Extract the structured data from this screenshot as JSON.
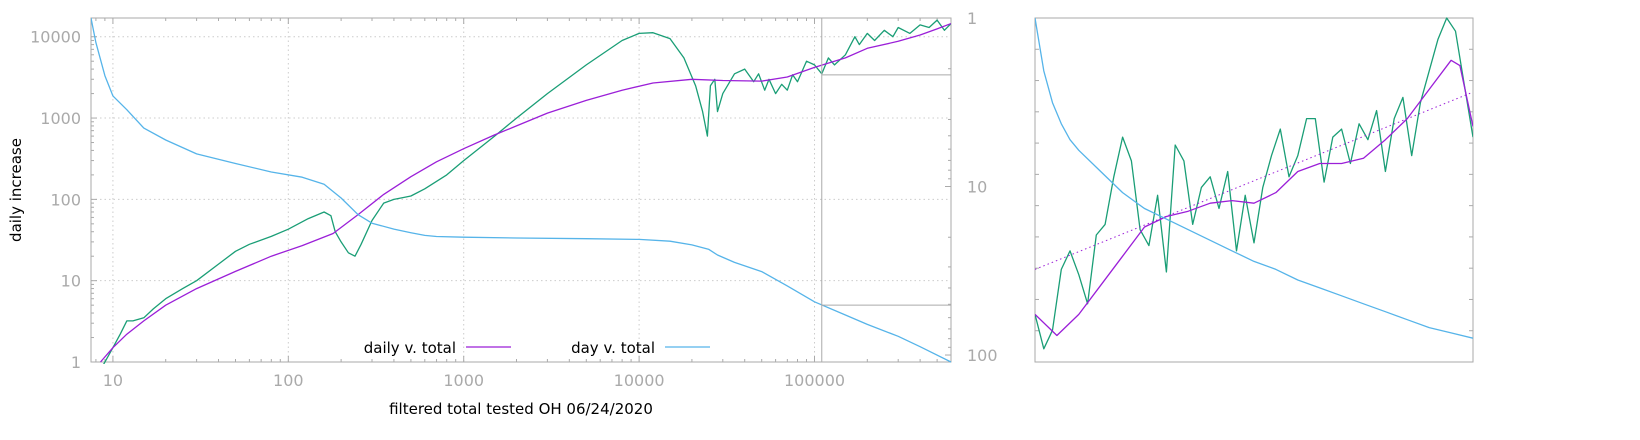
{
  "chart_data": [
    {
      "type": "line",
      "xlabel": "filtered total tested OH 06/24/2020",
      "ylabel": "daily increase",
      "x_scale": "log",
      "y_scale": "log",
      "y2_scale": "log-reversed",
      "xlim": [
        7.5,
        600000
      ],
      "ylim": [
        1,
        17000
      ],
      "y2lim": [
        1,
        110
      ],
      "x_ticks": [
        "10",
        "100",
        "1000",
        "10000",
        "100000"
      ],
      "y_ticks": [
        "1",
        "10",
        "100",
        "1000",
        "10000"
      ],
      "y2_ticks": [
        "1",
        "10",
        "100"
      ],
      "grid": true,
      "legend_position": "bottom-center",
      "colors": {
        "daily_raw": "#1a9e76",
        "daily_smooth": "#9b1fd8",
        "day": "#56b4e9",
        "axis": "#aaaaaa",
        "grid": "#cccccc"
      },
      "series": [
        {
          "name": "daily v. total",
          "axis": "left",
          "x": [
            8.5,
            10,
            12,
            15,
            20,
            30,
            50,
            80,
            120,
            180,
            250,
            350,
            500,
            700,
            1000,
            1500,
            2000,
            3000,
            5000,
            8000,
            12000,
            20000,
            30000,
            50000,
            70000,
            100000,
            150000,
            200000,
            300000,
            400000,
            500000,
            600000
          ],
          "y": [
            1,
            1.5,
            2.2,
            3.2,
            5,
            8,
            13,
            20,
            27,
            38,
            65,
            115,
            190,
            290,
            420,
            620,
            800,
            1150,
            1650,
            2200,
            2700,
            3000,
            2900,
            2850,
            3200,
            4200,
            5500,
            7200,
            8800,
            10500,
            12500,
            14500
          ]
        },
        {
          "name": "",
          "axis": "left",
          "x": [
            8.5,
            10,
            11,
            12,
            13,
            15,
            17,
            20,
            25,
            30,
            40,
            50,
            60,
            80,
            100,
            130,
            160,
            175,
            185,
            200,
            220,
            240,
            260,
            300,
            350,
            400,
            450,
            500,
            600,
            800,
            1000,
            1500,
            2000,
            3000,
            5000,
            8000,
            10000,
            12000,
            15000,
            18000,
            21000,
            23000,
            24500,
            25500,
            27000,
            28000,
            30000,
            35000,
            40000,
            45000,
            48000,
            52000,
            55000,
            60000,
            65000,
            70000,
            75000,
            80000,
            90000,
            100000,
            110000,
            120000,
            130000,
            150000,
            170000,
            180000,
            200000,
            220000,
            250000,
            280000,
            300000,
            350000,
            400000,
            450000,
            500000,
            550000,
            600000
          ],
          "y": [
            0.8,
            1.5,
            2.2,
            3.2,
            3.2,
            3.5,
            4.5,
            6,
            8,
            10,
            16,
            23,
            28,
            35,
            43,
            58,
            70,
            63,
            40,
            30,
            22,
            20,
            28,
            55,
            90,
            100,
            105,
            110,
            135,
            200,
            300,
            600,
            1000,
            2000,
            4500,
            9000,
            11000,
            11200,
            9500,
            5500,
            2500,
            1200,
            600,
            2500,
            3000,
            1200,
            2000,
            3500,
            4000,
            2800,
            3500,
            2200,
            3000,
            2000,
            2600,
            2200,
            3400,
            2800,
            5000,
            4500,
            3500,
            5500,
            4500,
            6000,
            10000,
            8000,
            11000,
            9000,
            12000,
            10000,
            13000,
            11000,
            14000,
            13000,
            16000,
            12000,
            14500
          ]
        },
        {
          "name": "day v. total",
          "axis": "right",
          "x": [
            7.5,
            8,
            9,
            10,
            12,
            15,
            20,
            30,
            50,
            80,
            120,
            160,
            200,
            250,
            300,
            400,
            500,
            600,
            700,
            1000,
            2000,
            5000,
            10000,
            15000,
            20000,
            25000,
            28000,
            35000,
            50000,
            70000,
            100000,
            150000,
            200000,
            300000,
            400000,
            600000
          ],
          "y": [
            1,
            1.4,
            2.2,
            2.9,
            3.5,
            4.5,
            5.3,
            6.4,
            7.3,
            8.2,
            8.8,
            9.7,
            11.7,
            14.7,
            16.5,
            17.9,
            18.8,
            19.5,
            19.8,
            20,
            20.2,
            20.4,
            20.6,
            21.1,
            22.2,
            23.6,
            25.5,
            28.2,
            32,
            38.9,
            48.3,
            57.9,
            65.8,
            77.4,
            89.2,
            110
          ]
        }
      ]
    },
    {
      "type": "line",
      "xlabel": "",
      "ylabel": "",
      "x_ticks": [],
      "y_ticks": [],
      "grid": false,
      "series": [
        {
          "name": "",
          "x": [
            0,
            0.05,
            0.1,
            0.15,
            0.2,
            0.25,
            0.3,
            0.35,
            0.4,
            0.45,
            0.5,
            0.55,
            0.6,
            0.65,
            0.7,
            0.75,
            0.8,
            0.85,
            0.9,
            0.95,
            0.97,
            1
          ],
          "y": [
            0.18,
            0.1,
            0.18,
            0.29,
            0.4,
            0.51,
            0.55,
            0.57,
            0.6,
            0.61,
            0.6,
            0.64,
            0.72,
            0.75,
            0.75,
            0.77,
            0.84,
            0.92,
            1.03,
            1.14,
            1.12,
            0.89
          ]
        },
        {
          "name": "",
          "x": [
            0,
            0.02,
            0.04,
            0.06,
            0.08,
            0.1,
            0.12,
            0.14,
            0.16,
            0.18,
            0.2,
            0.22,
            0.24,
            0.26,
            0.28,
            0.3,
            0.32,
            0.34,
            0.36,
            0.38,
            0.4,
            0.42,
            0.44,
            0.46,
            0.48,
            0.5,
            0.52,
            0.54,
            0.56,
            0.58,
            0.6,
            0.62,
            0.64,
            0.66,
            0.68,
            0.7,
            0.72,
            0.74,
            0.76,
            0.78,
            0.8,
            0.82,
            0.84,
            0.86,
            0.88,
            0.9,
            0.92,
            0.94,
            0.96,
            0.98,
            1
          ],
          "y": [
            0.18,
            0.05,
            0.12,
            0.35,
            0.42,
            0.33,
            0.22,
            0.48,
            0.52,
            0.7,
            0.85,
            0.76,
            0.5,
            0.44,
            0.63,
            0.34,
            0.82,
            0.76,
            0.52,
            0.66,
            0.7,
            0.58,
            0.72,
            0.42,
            0.63,
            0.45,
            0.66,
            0.78,
            0.88,
            0.7,
            0.78,
            0.92,
            0.92,
            0.68,
            0.85,
            0.88,
            0.75,
            0.9,
            0.84,
            0.95,
            0.72,
            0.92,
            1.0,
            0.78,
            0.98,
            1.1,
            1.22,
            1.3,
            1.25,
            1.05,
            0.85
          ]
        },
        {
          "name": "",
          "x": [
            0,
            0.02,
            0.04,
            0.06,
            0.08,
            0.1,
            0.15,
            0.2,
            0.25,
            0.3,
            0.35,
            0.4,
            0.45,
            0.5,
            0.55,
            0.6,
            0.65,
            0.7,
            0.75,
            0.8,
            0.85,
            0.9,
            0.95,
            1
          ],
          "y": [
            1.3,
            1.1,
            0.98,
            0.9,
            0.84,
            0.8,
            0.72,
            0.64,
            0.58,
            0.54,
            0.5,
            0.46,
            0.42,
            0.38,
            0.35,
            0.31,
            0.28,
            0.25,
            0.22,
            0.19,
            0.16,
            0.13,
            0.11,
            0.09
          ]
        },
        {
          "name": "",
          "x": [
            0,
            1
          ],
          "y": [
            0.35,
            1.02
          ]
        }
      ]
    }
  ]
}
